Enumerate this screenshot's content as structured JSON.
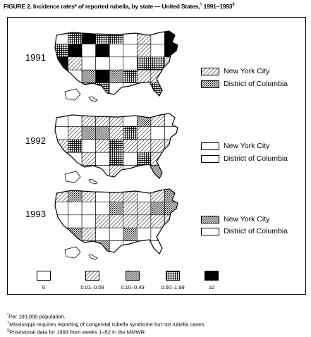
{
  "title": {
    "text": "FIGURE 2. Incidence rates* of reported rubella, by state — United States,",
    "dagger": "†",
    "years": " 1991–1993",
    "section": "§"
  },
  "panels": [
    {
      "year": "1991",
      "nyc_label": "New York City",
      "dc_label": "District of Columbia",
      "nyc_pattern": "hatch",
      "dc_pattern": "dots"
    },
    {
      "year": "1992",
      "nyc_label": "New York City",
      "dc_label": "District of Columbia",
      "nyc_pattern": "empty",
      "dc_pattern": "empty"
    },
    {
      "year": "1993",
      "nyc_label": "New York City",
      "dc_label": "District of Columbia",
      "nyc_pattern": "dots",
      "dc_pattern": "empty"
    }
  ],
  "legend": [
    {
      "label": "0",
      "pattern": "empty"
    },
    {
      "label": "0.01–0.09",
      "pattern": "hatch"
    },
    {
      "label": "0.10–0.49",
      "pattern": "dots"
    },
    {
      "label": "0.50–1.99",
      "pattern": "grid"
    },
    {
      "label": "≥2",
      "pattern": "solid"
    }
  ],
  "footnotes": [
    {
      "mark": "*",
      "text": "Per 100,000 population."
    },
    {
      "mark": "†",
      "text": "Mississippi requires reporting of congenital rubella syndrome but not rubella cases."
    },
    {
      "mark": "§",
      "text": "Provisional data for 1993 from weeks 1–52 in the MMWR."
    }
  ],
  "colors": {
    "ink": "#000000",
    "paper": "#ffffff"
  }
}
